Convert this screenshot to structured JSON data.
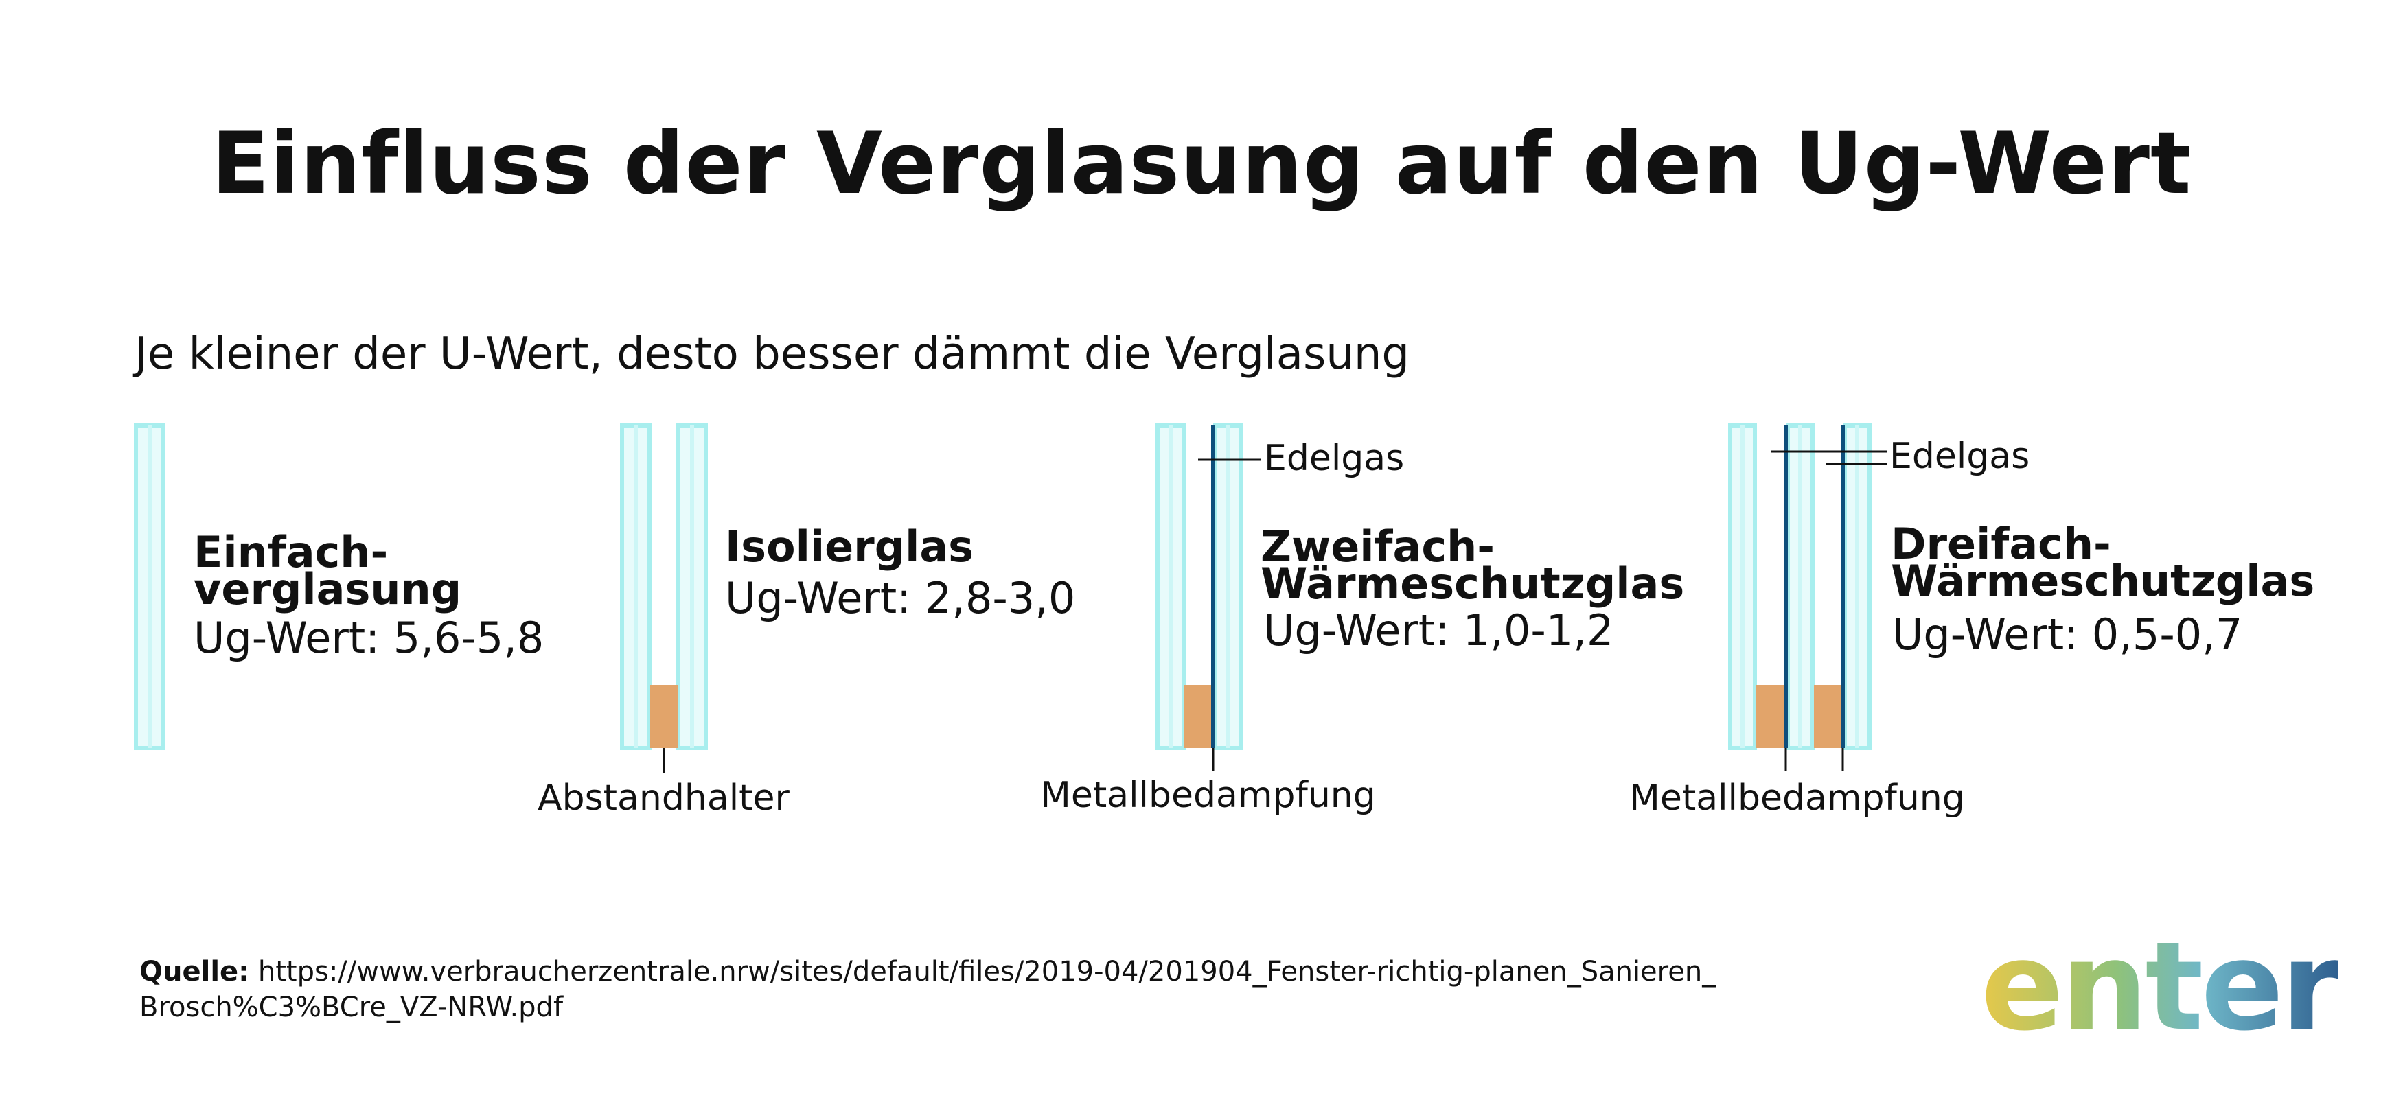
{
  "title": "Einfluss der Verglasung auf den Ug-Wert",
  "subtitle": "Je kleiner der U-Wert, desto besser dämmt die Verglasung",
  "items": [
    {
      "name_line1": "Einfach-",
      "name_line2": "verglasung",
      "uvalue": "Ug-Wert: 5,6-5,8"
    },
    {
      "name_line1": "Isolierglas",
      "name_line2": "",
      "uvalue": "Ug-Wert: 2,8-3,0",
      "bottom_label": "Abstandhalter"
    },
    {
      "name_line1": "Zweifach-",
      "name_line2": "Wärmeschutzglas",
      "uvalue": "Ug-Wert: 1,0-1,2",
      "top_label": "Edelgas",
      "bottom_label": "Metallbedampfung"
    },
    {
      "name_line1": "Dreifach-",
      "name_line2": "Wärmeschutzglas",
      "uvalue": "Ug-Wert: 0,5-0,7",
      "top_label": "Edelgas",
      "bottom_label": "Metallbedampfung"
    }
  ],
  "source": {
    "label": "Quelle:",
    "text": " https://www.verbraucherzentrale.nrw/sites/default/files/2019-04/201904_Fenster-richtig-planen_Sanieren_ Brosch%C3%BCre_VZ-NRW.pdf"
  },
  "logo": {
    "text": "enter"
  },
  "colors": {
    "glass_fill": "#e8fbfb",
    "glass_line": "#a8eeee",
    "spacer": "#e2a46a",
    "coating": "#0e4f7c",
    "leader": "#111111"
  }
}
